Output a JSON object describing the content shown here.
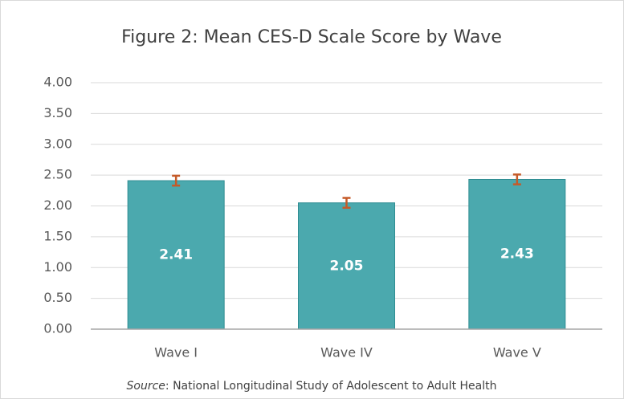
{
  "chart_data": {
    "type": "bar",
    "title": "Figure 2: Mean CES-D Scale Score by Wave",
    "categories": [
      "Wave I",
      "Wave IV",
      "Wave V"
    ],
    "values": [
      2.41,
      2.05,
      2.43
    ],
    "errors": [
      0.08,
      0.08,
      0.08
    ],
    "color": "#4ba9ae",
    "error_color": "#c55a28",
    "ylim": [
      0,
      4
    ],
    "yticks": [
      {
        "value": 0,
        "label": "0.00"
      },
      {
        "value": 0.5,
        "label": "0.50"
      },
      {
        "value": 1,
        "label": "1.00"
      },
      {
        "value": 1.5,
        "label": "1.50"
      },
      {
        "value": 2,
        "label": "2.00"
      },
      {
        "value": 2.5,
        "label": "2.50"
      },
      {
        "value": 3,
        "label": "3.00"
      },
      {
        "value": 3.5,
        "label": "3.50"
      },
      {
        "value": 4,
        "label": "4.00"
      }
    ],
    "grid": true,
    "source_label": "Source",
    "source_text": ": National Longitudinal Study of Adolescent to Adult Health"
  }
}
